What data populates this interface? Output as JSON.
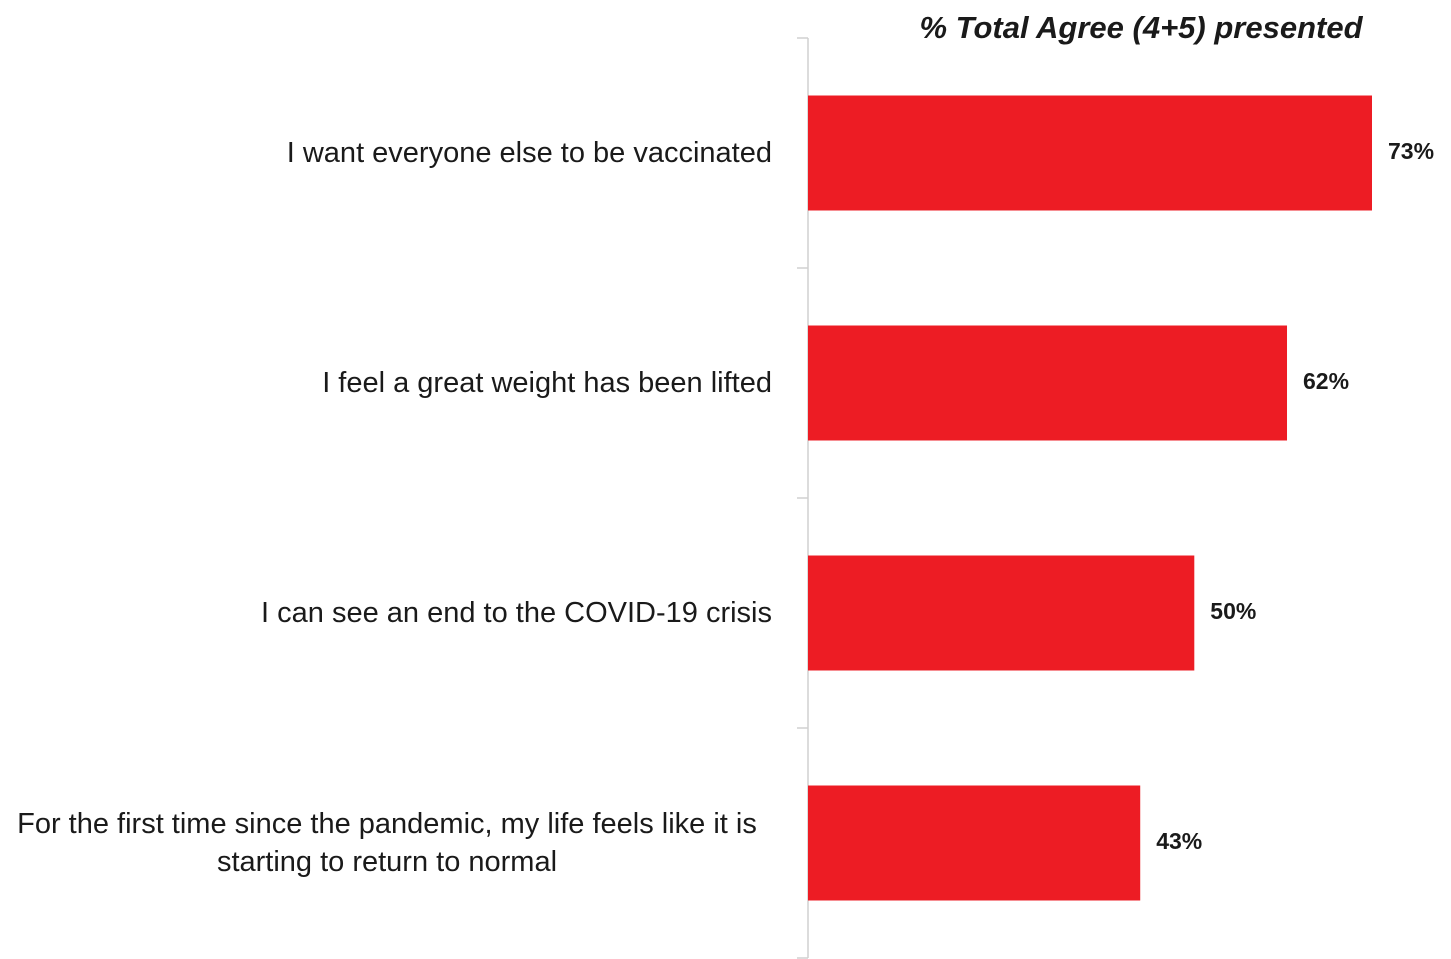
{
  "chart_data": {
    "type": "bar",
    "orientation": "horizontal",
    "title": "% Total Agree (4+5) presented",
    "categories": [
      "I want everyone else to be vaccinated",
      "I feel a great weight has been lifted",
      "I can see an end to the COVID-19 crisis",
      "For the first time since the pandemic, my life feels like it is starting to return to normal"
    ],
    "values": [
      73,
      62,
      50,
      43
    ],
    "value_labels": [
      "73%",
      "62%",
      "50%",
      "43%"
    ],
    "color": "#ed1c24"
  }
}
